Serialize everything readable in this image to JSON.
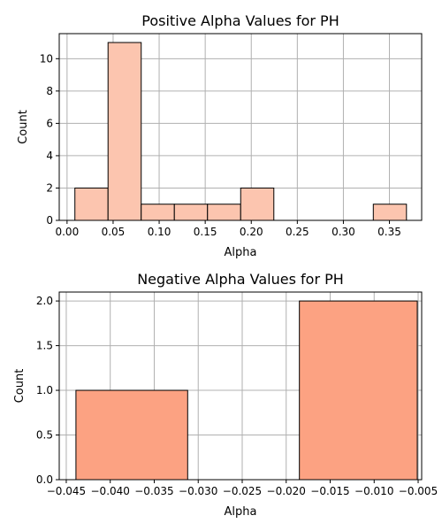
{
  "chart_data": [
    {
      "type": "bar",
      "title": "Positive Alpha Values for PH",
      "xlabel": "Alpha",
      "ylabel": "Count",
      "xlim": [
        -0.0085,
        0.385
      ],
      "ylim": [
        0,
        11.55
      ],
      "bin_edges": [
        0.0085,
        0.0445,
        0.0805,
        0.1165,
        0.1525,
        0.1885,
        0.2245,
        0.2605,
        0.2965,
        0.3325,
        0.3685
      ],
      "values": [
        2,
        11,
        1,
        1,
        1,
        2,
        0,
        0,
        0,
        1
      ],
      "xticks": [
        0.0,
        0.05,
        0.1,
        0.15,
        0.2,
        0.25,
        0.3,
        0.35
      ],
      "xtick_labels": [
        "0.00",
        "0.05",
        "0.10",
        "0.15",
        "0.20",
        "0.25",
        "0.30",
        "0.35"
      ],
      "yticks": [
        0,
        2,
        4,
        6,
        8,
        10
      ],
      "ytick_labels": [
        "0",
        "2",
        "4",
        "6",
        "8",
        "10"
      ],
      "grid": true,
      "bar_color": "#fcc5af",
      "edge_color": "#000000"
    },
    {
      "type": "bar",
      "title": "Negative Alpha Values for PH",
      "xlabel": "Alpha",
      "ylabel": "Count",
      "xlim": [
        -0.0458,
        -0.0046
      ],
      "ylim": [
        0,
        2.1
      ],
      "bin_edges": [
        -0.0439,
        -0.0312,
        -0.0185,
        -0.0051
      ],
      "values": [
        1,
        0,
        2
      ],
      "xticks": [
        -0.045,
        -0.04,
        -0.035,
        -0.03,
        -0.025,
        -0.02,
        -0.015,
        -0.01,
        -0.005
      ],
      "xtick_labels": [
        "−0.045",
        "−0.040",
        "−0.035",
        "−0.030",
        "−0.025",
        "−0.020",
        "−0.015",
        "−0.010",
        "−0.005"
      ],
      "yticks": [
        0,
        0.5,
        1.0,
        1.5,
        2.0
      ],
      "ytick_labels": [
        "0.0",
        "0.5",
        "1.0",
        "1.5",
        "2.0"
      ],
      "grid": true,
      "bar_color": "#fca282",
      "edge_color": "#000000"
    }
  ]
}
